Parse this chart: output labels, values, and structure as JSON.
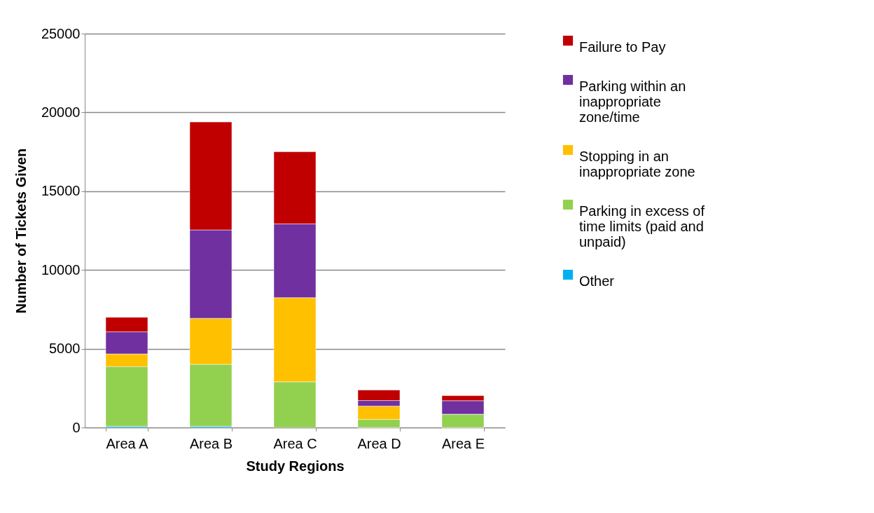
{
  "chart_data": {
    "type": "bar",
    "stacked": true,
    "xlabel": "Study Regions",
    "ylabel": "Number of Tickets Given",
    "categories": [
      "Area A",
      "Area B",
      "Area C",
      "Area D",
      "Area E"
    ],
    "series": [
      {
        "name": "Other",
        "color": "#00b0f0",
        "values": [
          80,
          80,
          null,
          0,
          0
        ]
      },
      {
        "name": "Parking in excess of time limits (paid and unpaid)",
        "color": "#92d050",
        "values": [
          3790,
          3930,
          2900,
          510,
          850
        ]
      },
      {
        "name": "Stopping in an inappropriate zone",
        "color": "#ffc000",
        "values": [
          800,
          2920,
          5340,
          850,
          0
        ]
      },
      {
        "name": "Parking within an inappropriate zone/time",
        "color": "#7030a0",
        "values": [
          1400,
          5610,
          4680,
          350,
          850
        ]
      },
      {
        "name": "Failure to Pay",
        "color": "#c00000",
        "values": [
          920,
          6850,
          4580,
          670,
          320
        ]
      }
    ],
    "ylim": [
      0,
      25000
    ],
    "yticks": [
      0,
      5000,
      10000,
      15000,
      20000,
      25000
    ],
    "grid": "y",
    "legend": "top right"
  }
}
